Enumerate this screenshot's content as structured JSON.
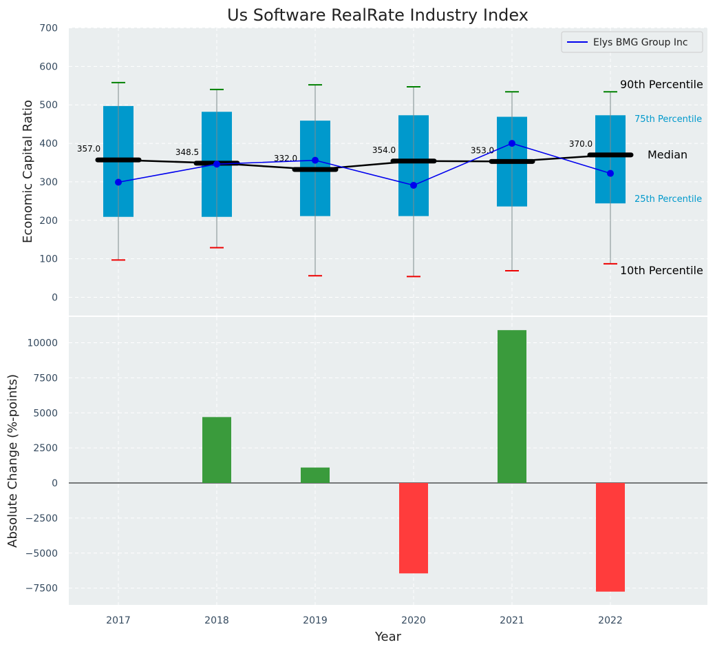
{
  "chart_data": [
    {
      "type": "box",
      "title": "Us Software RealRate Industry Index",
      "ylabel": "Economic Capital Ratio",
      "ylim": [
        -50,
        700
      ],
      "yticks": [
        0,
        100,
        200,
        300,
        400,
        500,
        600,
        700
      ],
      "categories": [
        "2017",
        "2018",
        "2019",
        "2020",
        "2021",
        "2022"
      ],
      "p10": [
        97,
        129,
        56,
        54,
        69,
        87
      ],
      "p25": [
        209,
        209,
        211,
        211,
        236,
        244
      ],
      "median": [
        357.0,
        348.5,
        332.0,
        354.0,
        353.0,
        370.0
      ],
      "median_labels": [
        "357.0",
        "348.5",
        "332.0",
        "354.0",
        "353.0",
        "370.0"
      ],
      "p75": [
        497,
        482,
        459,
        473,
        469,
        473
      ],
      "p90": [
        558,
        540,
        552,
        547,
        534,
        534
      ],
      "series": [
        {
          "name": "Elys BMG Group Inc",
          "values": [
            299,
            346,
            356,
            291,
            400,
            322
          ],
          "color": "#0000ee"
        }
      ],
      "annotations": {
        "p90": "90th Percentile",
        "p75": "75th Percentile",
        "median": "Median",
        "p25": "25th Percentile",
        "p10": "10th Percentile"
      },
      "colors": {
        "box": "#0099cc",
        "background": "#eaeeef",
        "p90_cap": "#008000",
        "p10_cap": "#ee0000"
      },
      "grid": true,
      "legend": "top-right"
    },
    {
      "type": "bar",
      "xlabel": "Year",
      "ylabel": "Absolute Change (%-points)",
      "ylim": [
        -8700,
        12000
      ],
      "yticks": [
        -7500,
        -5000,
        -2500,
        0,
        2500,
        5000,
        7500,
        10000
      ],
      "ytick_labels": [
        "−7500",
        "−5000",
        "−2500",
        "0",
        "2500",
        "5000",
        "7500",
        "10000"
      ],
      "categories": [
        "2017",
        "2018",
        "2019",
        "2020",
        "2021",
        "2022"
      ],
      "values": [
        0,
        4700,
        1100,
        -6450,
        10900,
        -7750
      ],
      "colors": {
        "positive": "#3a9b3c",
        "negative": "#ff3c3c"
      },
      "grid": true
    }
  ]
}
